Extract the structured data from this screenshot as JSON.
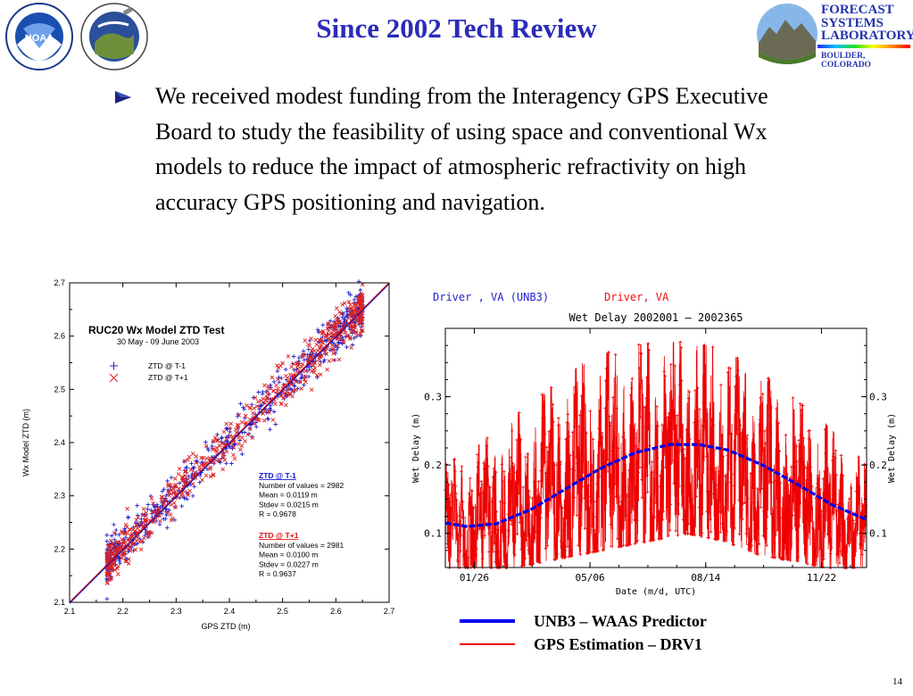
{
  "slide": {
    "title": "Since 2002 Tech Review",
    "bullet": "We received modest funding from the Interagency GPS Executive Board to study the feasibility of using space and conventional Wx models to reduce the impact of atmospheric refractivity on high accuracy GPS positioning and navigation.",
    "page_number": "14",
    "logos": {
      "noaa_text": "NOAA",
      "fsl_line1": "FORECAST",
      "fsl_line2": "SYSTEMS",
      "fsl_line3": "LABORATORY",
      "fsl_location": "BOULDER, COLORADO"
    },
    "legend": [
      {
        "label": "UNB3 – WAAS Predictor",
        "color": "#0000ee"
      },
      {
        "label": "GPS Estimation – DRV1",
        "color": "#ee0000"
      }
    ]
  },
  "chart_data": [
    {
      "type": "scatter",
      "title": "RUC20 Wx Model ZTD Test",
      "subtitle": "30 May - 09 June 2003",
      "xlabel": "GPS ZTD (m)",
      "ylabel": "Wx Model ZTD (m)",
      "xlim": [
        2.1,
        2.7
      ],
      "ylim": [
        2.1,
        2.7
      ],
      "xticks": [
        "2.1",
        "2.2",
        "2.3",
        "2.4",
        "2.5",
        "2.6",
        "2.7"
      ],
      "yticks": [
        "2.1",
        "2.2",
        "2.3",
        "2.4",
        "2.5",
        "2.6",
        "2.7"
      ],
      "legend": [
        {
          "label": "ZTD @ T-1",
          "marker": "+",
          "color": "#2222cc"
        },
        {
          "label": "ZTD @ T+1",
          "marker": "x",
          "color": "#dd2222"
        }
      ],
      "stats": [
        {
          "header": "ZTD @ T-1",
          "color": "#1111cc",
          "lines": [
            "Number of values = 2982",
            "Mean = 0.0119 m",
            "Stdev = 0.0215 m",
            "R = 0.9678"
          ]
        },
        {
          "header": "ZTD @ T+1",
          "color": "#dd1111",
          "lines": [
            "Number of values = 2981",
            "Mean = 0.0100 m",
            "Stdev = 0.0227 m",
            "R = 0.9637"
          ]
        }
      ],
      "series": [
        {
          "name": "ZTD @ T-1",
          "count": 2982,
          "mean_offset": 0.0119,
          "stdev": 0.0215,
          "x_range": [
            2.17,
            2.65
          ]
        },
        {
          "name": "ZTD @ T+1",
          "count": 2981,
          "mean_offset": 0.01,
          "stdev": 0.0227,
          "x_range": [
            2.17,
            2.65
          ]
        }
      ],
      "reference_line": [
        [
          2.1,
          2.1
        ],
        [
          2.7,
          2.7
        ]
      ]
    },
    {
      "type": "line",
      "title": "Wet Delay 2002001 – 2002365",
      "header_left": "Driver , VA  (UNB3)",
      "header_right": "Driver, VA",
      "xlabel": "Date (m/d, UTC)",
      "ylabel": "Wet Delay (m)",
      "xtick_labels": [
        "01/26",
        "05/06",
        "08/14",
        "11/22"
      ],
      "xtick_days": [
        26,
        126,
        226,
        326
      ],
      "xlim": [
        1,
        365
      ],
      "ylim": [
        0.05,
        0.4
      ],
      "yticks": [
        "0.1",
        "0.2",
        "0.3"
      ],
      "ytick_values": [
        0.1,
        0.2,
        0.3
      ],
      "series": [
        {
          "name": "UNB3",
          "color": "#0000ee",
          "points": [
            [
              1,
              0.115
            ],
            [
              20,
              0.11
            ],
            [
              45,
              0.114
            ],
            [
              75,
              0.135
            ],
            [
              105,
              0.165
            ],
            [
              135,
              0.195
            ],
            [
              165,
              0.218
            ],
            [
              195,
              0.23
            ],
            [
              220,
              0.23
            ],
            [
              245,
              0.222
            ],
            [
              275,
              0.2
            ],
            [
              305,
              0.172
            ],
            [
              335,
              0.142
            ],
            [
              365,
              0.12
            ]
          ]
        },
        {
          "name": "DRV1",
          "color": "#ee0000",
          "envelope": [
            [
              1,
              0.05,
              0.2
            ],
            [
              30,
              0.05,
              0.23
            ],
            [
              60,
              0.05,
              0.27
            ],
            [
              90,
              0.06,
              0.31
            ],
            [
              120,
              0.07,
              0.35
            ],
            [
              150,
              0.08,
              0.37
            ],
            [
              180,
              0.09,
              0.38
            ],
            [
              210,
              0.1,
              0.38
            ],
            [
              240,
              0.09,
              0.37
            ],
            [
              270,
              0.07,
              0.34
            ],
            [
              300,
              0.06,
              0.3
            ],
            [
              330,
              0.05,
              0.26
            ],
            [
              365,
              0.05,
              0.2
            ]
          ]
        }
      ]
    }
  ]
}
